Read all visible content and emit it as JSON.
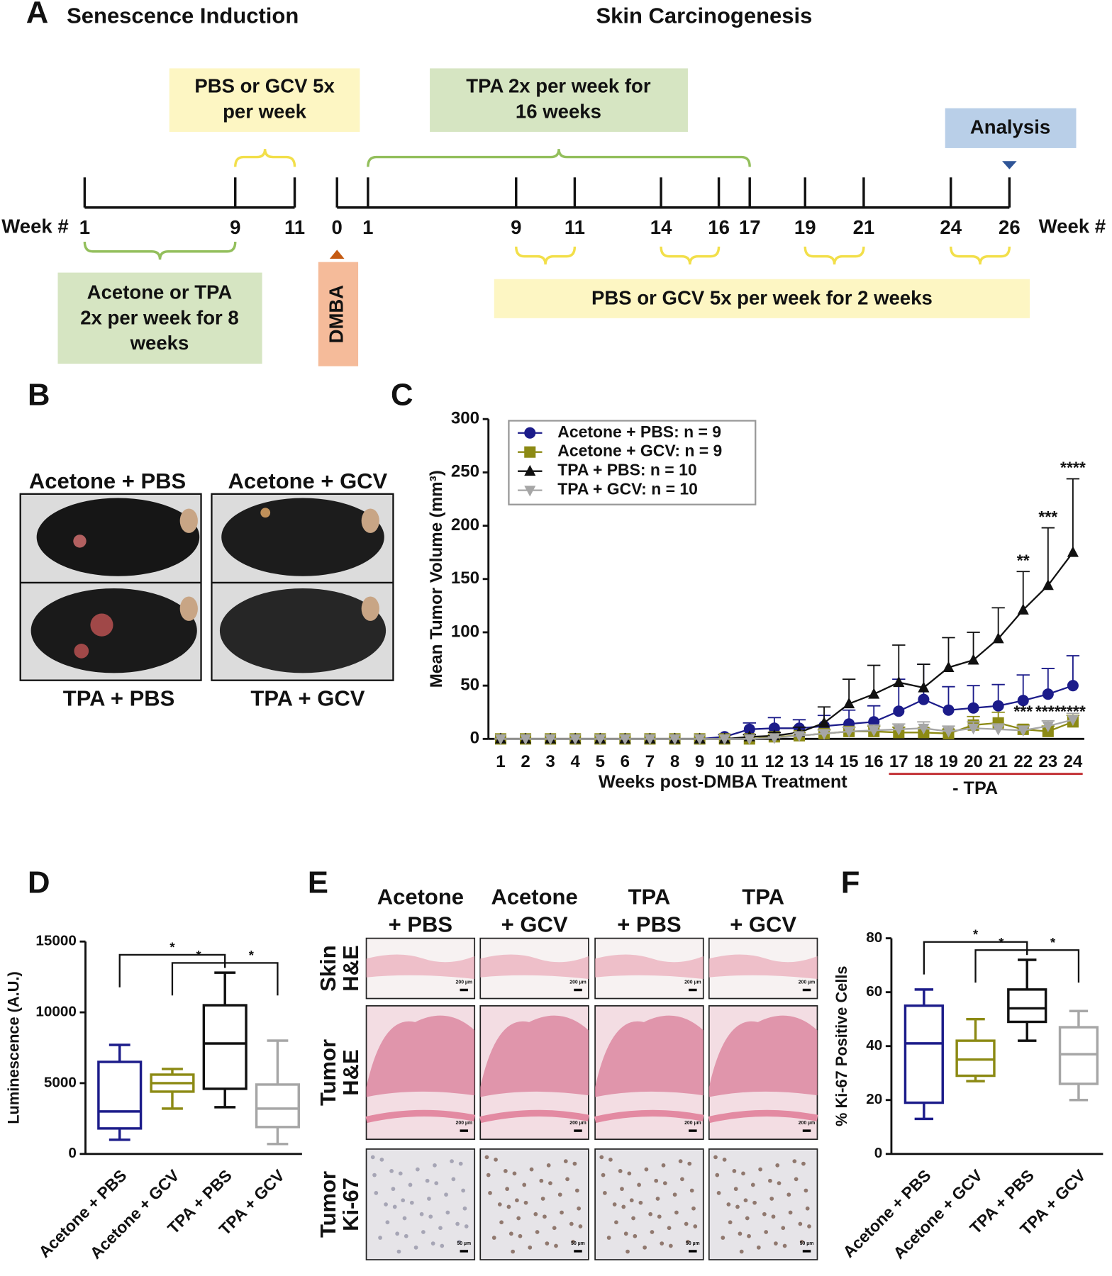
{
  "panel_labels": {
    "a": "A",
    "b": "B",
    "c": "C",
    "d": "D",
    "e": "E",
    "f": "F"
  },
  "timeline": {
    "left_title": "Senescence Induction",
    "right_title": "Skin Carcinogenesis",
    "week_label": "Week #",
    "left_weeks": [
      1,
      9,
      11
    ],
    "right_weeks": [
      0,
      1,
      9,
      11,
      14,
      16,
      17,
      19,
      21,
      24,
      26
    ],
    "boxes": {
      "pbs_gcv_top": [
        "PBS or GCV 5x",
        "per week"
      ],
      "tpa": [
        "TPA 2x per week for",
        "16 weeks"
      ],
      "analysis": [
        "Analysis"
      ],
      "acetone_tpa": [
        "Acetone or TPA",
        "2x per week for 8",
        "weeks"
      ],
      "dmba": [
        "DMBA"
      ],
      "pbs_gcv_bottom": [
        "PBS or GCV 5x per week for 2 weeks"
      ]
    }
  },
  "mice": {
    "groups": [
      "Acetone + PBS",
      "Acetone + GCV",
      "TPA + PBS",
      "TPA + GCV"
    ]
  },
  "histology": {
    "columns": [
      [
        "Acetone",
        "+ PBS"
      ],
      [
        "Acetone",
        "+ GCV"
      ],
      [
        "TPA",
        "+ PBS"
      ],
      [
        "TPA",
        "+ GCV"
      ]
    ],
    "rows": [
      [
        "Skin",
        "H&E"
      ],
      [
        "Tumor",
        "H&E"
      ],
      [
        "Tumor",
        "Ki-67"
      ]
    ],
    "scale_bars": [
      "200 µm",
      "200 µm",
      "50 µm"
    ]
  },
  "chart_data": [
    {
      "type": "line",
      "xlabel": "Weeks post-DMBA Treatment",
      "ylabel": "Mean Tumor Volume (mm³)",
      "categories": [
        1,
        2,
        3,
        4,
        5,
        6,
        7,
        8,
        9,
        10,
        11,
        12,
        13,
        14,
        15,
        16,
        17,
        18,
        19,
        20,
        21,
        22,
        23,
        24
      ],
      "ylim": [
        0,
        300
      ],
      "yticks": [
        0,
        50,
        100,
        150,
        200,
        250,
        300
      ],
      "legend": "upper left",
      "series": [
        {
          "name": "Acetone + PBS: n = 9",
          "color": "#1c1c8a",
          "marker": "circle",
          "values": [
            0,
            0,
            0,
            0,
            0,
            0,
            0,
            0,
            0,
            2,
            9,
            10,
            10,
            12,
            14,
            16,
            26,
            37,
            27,
            29,
            31,
            36,
            42,
            50
          ],
          "errors": [
            0,
            0,
            0,
            0,
            0,
            0,
            0,
            0,
            0,
            2,
            6,
            10,
            8,
            10,
            13,
            15,
            30,
            33,
            22,
            21,
            20,
            24,
            24,
            28
          ]
        },
        {
          "name": "Acetone + GCV: n = 9",
          "color": "#8c8a14",
          "marker": "square",
          "values": [
            0,
            0,
            0,
            0,
            0,
            0,
            0,
            0,
            0,
            0,
            0,
            2,
            3,
            5,
            7,
            7,
            6,
            6,
            5,
            13,
            15,
            9,
            7,
            16
          ],
          "errors": [
            0,
            0,
            0,
            0,
            0,
            0,
            0,
            0,
            0,
            0,
            0,
            2,
            3,
            4,
            4,
            5,
            5,
            4,
            4,
            8,
            10,
            4,
            5,
            6
          ]
        },
        {
          "name": "TPA + PBS: n = 10",
          "color": "#111111",
          "marker": "triangle",
          "values": [
            0,
            0,
            0,
            0,
            0,
            0,
            0,
            0,
            0,
            0,
            2,
            3,
            6,
            15,
            33,
            42,
            53,
            48,
            67,
            74,
            94,
            121,
            144,
            175
          ],
          "errors": [
            0,
            0,
            0,
            0,
            0,
            0,
            0,
            0,
            0,
            0,
            2,
            3,
            5,
            15,
            23,
            27,
            35,
            22,
            28,
            26,
            29,
            36,
            54,
            69
          ]
        },
        {
          "name": "TPA + GCV: n = 10",
          "color": "#a6a6a6",
          "marker": "triangle-down",
          "values": [
            0,
            0,
            0,
            0,
            0,
            0,
            0,
            0,
            0,
            0,
            0,
            1,
            3,
            5,
            7,
            8,
            9,
            10,
            7,
            10,
            9,
            8,
            12,
            18
          ],
          "errors": [
            0,
            0,
            0,
            0,
            0,
            0,
            0,
            0,
            0,
            0,
            0,
            1,
            2,
            3,
            4,
            5,
            5,
            6,
            5,
            6,
            5,
            4,
            5,
            6
          ]
        }
      ],
      "annotations": [
        {
          "text": "**",
          "x": 22
        },
        {
          "text": "***",
          "x": 23
        },
        {
          "text": "****",
          "x": 24
        }
      ],
      "lower_annotations": [
        {
          "text": "***",
          "x": 22
        },
        {
          "text": "****",
          "x": 23
        },
        {
          "text": "****",
          "x": 24
        }
      ],
      "period": {
        "label": "- TPA",
        "from": 17,
        "to": 24,
        "color": "#c0282d"
      }
    },
    {
      "type": "box",
      "ylabel": "Luminescence (A.U.)",
      "categories": [
        "Acetone + PBS",
        "Acetone + GCV",
        "TPA + PBS",
        "TPA + GCV"
      ],
      "colors": [
        "#1c1c8a",
        "#8c8a14",
        "#111111",
        "#a6a6a6"
      ],
      "boxes": [
        {
          "min": 1000,
          "q1": 1800,
          "median": 3000,
          "q3": 6500,
          "max": 7700
        },
        {
          "min": 3200,
          "q1": 4400,
          "median": 5000,
          "q3": 5600,
          "max": 6000
        },
        {
          "min": 3300,
          "q1": 4600,
          "median": 7800,
          "q3": 10500,
          "max": 12800
        },
        {
          "min": 700,
          "q1": 1900,
          "median": 3200,
          "q3": 4900,
          "max": 8000
        }
      ],
      "ylim": [
        0,
        15000
      ],
      "yticks": [
        0,
        5000,
        10000,
        15000
      ],
      "significance": [
        {
          "from": 0,
          "to": 2,
          "label": "*"
        },
        {
          "from": 1,
          "to": 2,
          "label": "*"
        },
        {
          "from": 2,
          "to": 3,
          "label": "*"
        }
      ]
    },
    {
      "type": "box",
      "ylabel": "% Ki-67 Positive Cells",
      "categories": [
        "Acetone + PBS",
        "Acetone + GCV",
        "TPA + PBS",
        "TPA + GCV"
      ],
      "colors": [
        "#1c1c8a",
        "#8c8a14",
        "#111111",
        "#a6a6a6"
      ],
      "boxes": [
        {
          "min": 13,
          "q1": 19,
          "median": 41,
          "q3": 55,
          "max": 61
        },
        {
          "min": 27,
          "q1": 29,
          "median": 35,
          "q3": 42,
          "max": 50
        },
        {
          "min": 42,
          "q1": 49,
          "median": 54,
          "q3": 61,
          "max": 72
        },
        {
          "min": 20,
          "q1": 26,
          "median": 37,
          "q3": 47,
          "max": 53
        }
      ],
      "ylim": [
        0,
        80
      ],
      "yticks": [
        0,
        20,
        40,
        60,
        80
      ],
      "significance": [
        {
          "from": 0,
          "to": 2,
          "label": "*"
        },
        {
          "from": 1,
          "to": 2,
          "label": "*"
        },
        {
          "from": 2,
          "to": 3,
          "label": "*"
        }
      ]
    }
  ]
}
